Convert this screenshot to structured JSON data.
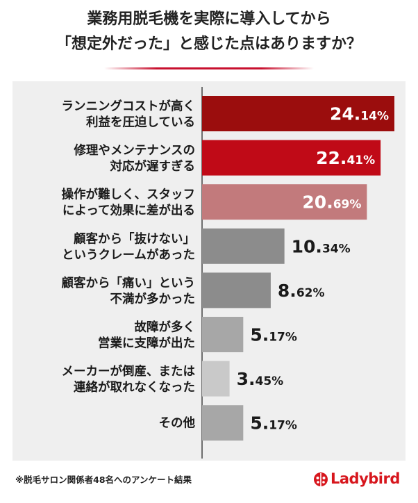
{
  "title_line1": "業務用脱毛機を実際に導入してから",
  "title_line2": "「想定外だった」と感じた点はありますか？",
  "footnote": "※脱毛サロン関係者48名へのアンケート結果",
  "logo_text": "Ladybird",
  "colors": {
    "accent": "#c8102e",
    "bar_dark_red": "#9b0d0d",
    "bar_red": "#c00a17",
    "bar_pink": "#c27a7c",
    "bar_gray_dark": "#8c8c8c",
    "bar_gray": "#a7a7a7",
    "bar_gray_light": "#c9c9c9"
  },
  "chart_data": {
    "type": "bar",
    "orientation": "horizontal",
    "categories": [
      [
        "ランニングコストが高く",
        "利益を圧迫している"
      ],
      [
        "修理やメンテナンスの",
        "対応が遅すぎる"
      ],
      [
        "操作が難しく、スタッフ",
        "によって効果に差が出る"
      ],
      [
        "顧客から「抜けない」",
        "というクレームがあった"
      ],
      [
        "顧客から「痛い」という",
        "不満が多かった"
      ],
      [
        "故障が多く",
        "営業に支障が出た"
      ],
      [
        "メーカーが倒産、または",
        "連絡が取れなくなった"
      ],
      [
        "その他"
      ]
    ],
    "values": [
      24.14,
      22.41,
      20.69,
      10.34,
      8.62,
      5.17,
      3.45,
      5.17
    ],
    "value_labels": [
      [
        "24.",
        "14%"
      ],
      [
        "22.",
        "41%"
      ],
      [
        "20.",
        "69%"
      ],
      [
        "10.",
        "34%"
      ],
      [
        "8.",
        "62%"
      ],
      [
        "5.",
        "17%"
      ],
      [
        "3.",
        "45%"
      ],
      [
        "5.",
        "17%"
      ]
    ],
    "bar_colors": [
      "#9b0d0d",
      "#c00a17",
      "#c27a7c",
      "#8c8c8c",
      "#8c8c8c",
      "#a7a7a7",
      "#c9c9c9",
      "#a7a7a7"
    ],
    "label_inside": [
      true,
      true,
      true,
      false,
      false,
      false,
      false,
      false
    ],
    "xlim": [
      0,
      24.14
    ],
    "grid": false,
    "legend": "none"
  }
}
